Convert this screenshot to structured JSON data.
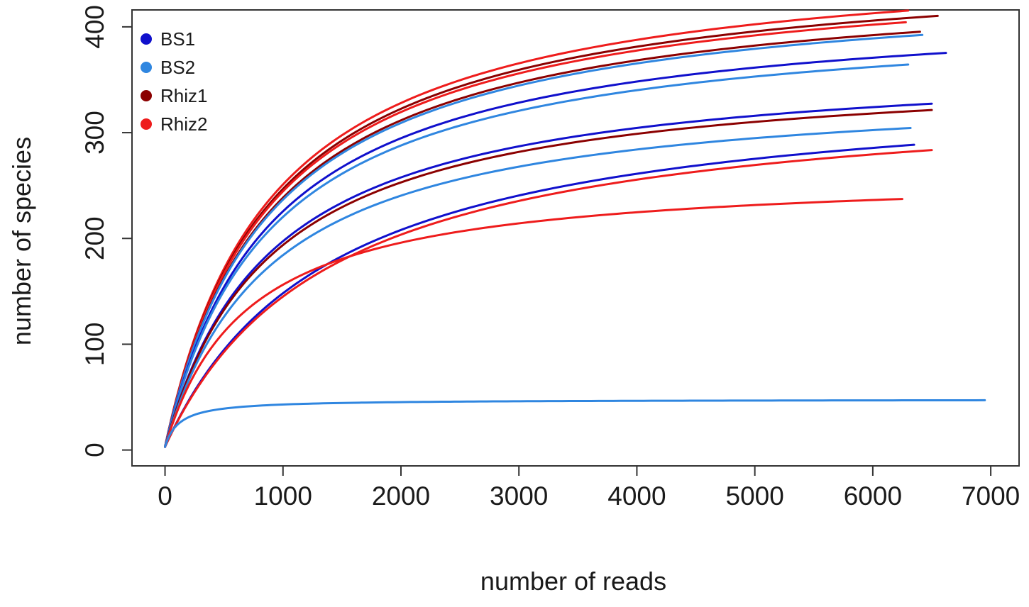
{
  "chart_data": {
    "type": "line",
    "title": "",
    "xlabel": "number of reads",
    "ylabel": "number of species",
    "xlim": [
      -280,
      7240
    ],
    "ylim": [
      -15,
      416
    ],
    "xticks": [
      0,
      1000,
      2000,
      3000,
      4000,
      5000,
      6000,
      7000
    ],
    "yticks": [
      0,
      100,
      200,
      300,
      400
    ],
    "grid": false,
    "legend_position": "top-left",
    "legend": [
      {
        "label": "BS1",
        "color": "#1010cc"
      },
      {
        "label": "BS2",
        "color": "#2f86e0"
      },
      {
        "label": "Rhiz1",
        "color": "#8b0000"
      },
      {
        "label": "Rhiz2",
        "color": "#ee1c1c"
      }
    ],
    "series": [
      {
        "group": "Rhiz2",
        "color": "#ee1c1c",
        "max_reads": 6300,
        "final_species": 415
      },
      {
        "group": "Rhiz1",
        "color": "#8b0000",
        "max_reads": 6550,
        "final_species": 410
      },
      {
        "group": "Rhiz2",
        "color": "#ee1c1c",
        "max_reads": 6280,
        "final_species": 404
      },
      {
        "group": "Rhiz1",
        "color": "#8b0000",
        "max_reads": 6400,
        "final_species": 395
      },
      {
        "group": "BS2",
        "color": "#2f86e0",
        "max_reads": 6420,
        "final_species": 392
      },
      {
        "group": "BS1",
        "color": "#1010cc",
        "max_reads": 6620,
        "final_species": 375
      },
      {
        "group": "BS2",
        "color": "#2f86e0",
        "max_reads": 6300,
        "final_species": 364
      },
      {
        "group": "BS1",
        "color": "#1010cc",
        "max_reads": 6500,
        "final_species": 327
      },
      {
        "group": "Rhiz1",
        "color": "#8b0000",
        "max_reads": 6500,
        "final_species": 321
      },
      {
        "group": "BS2",
        "color": "#2f86e0",
        "max_reads": 6320,
        "final_species": 304
      },
      {
        "group": "BS1",
        "color": "#1010cc",
        "max_reads": 6350,
        "final_species": 288
      },
      {
        "group": "Rhiz2",
        "color": "#ee1c1c",
        "max_reads": 6500,
        "final_species": 283
      },
      {
        "group": "Rhiz2",
        "color": "#ee1c1c",
        "max_reads": 6250,
        "final_species": 237
      },
      {
        "group": "BS2",
        "color": "#2f86e0",
        "max_reads": 6950,
        "final_species": 47
      }
    ]
  }
}
